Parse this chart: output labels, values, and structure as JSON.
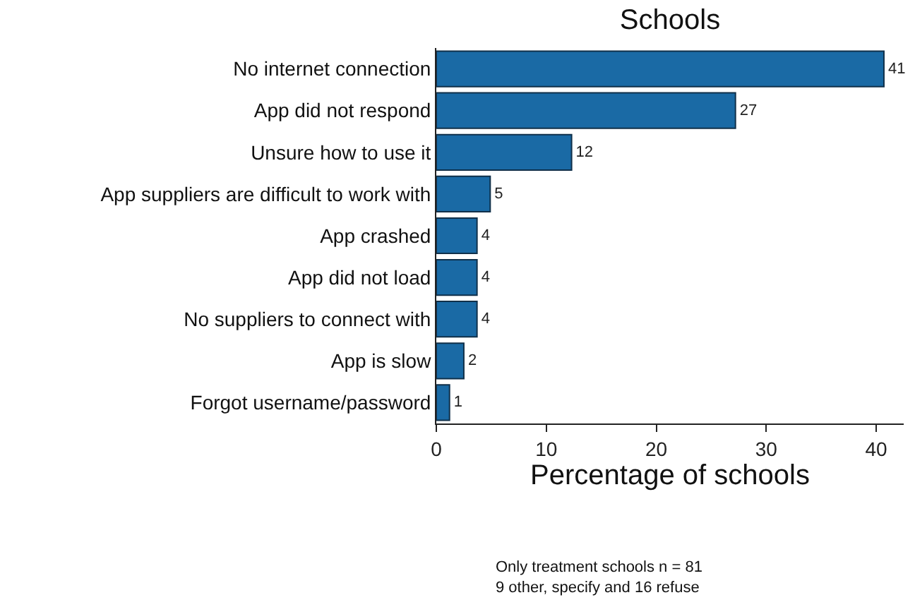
{
  "chart_data": {
    "type": "bar",
    "orientation": "horizontal",
    "title": "Schools",
    "xlabel": "Percentage of schools",
    "categories": [
      "No internet connection",
      "App did not respond",
      "Unsure how to use it",
      "App suppliers are difficult to work with",
      "App crashed",
      "App did not load",
      "No suppliers to connect with",
      "App is slow",
      "Forgot username/password"
    ],
    "values": [
      40.7,
      27.2,
      12.3,
      4.9,
      3.7,
      3.7,
      3.7,
      2.5,
      1.2
    ],
    "value_labels": [
      "41",
      "27",
      "12",
      "5",
      "4",
      "4",
      "4",
      "2",
      "1"
    ],
    "color": "#1a6aa5",
    "xlim": [
      0,
      42.5
    ],
    "xticks": [
      0,
      10,
      20,
      30,
      40
    ],
    "legend": false,
    "annotations": [
      "Only treatment schools n = 81\n9 other, specify and 16 refuse"
    ]
  }
}
